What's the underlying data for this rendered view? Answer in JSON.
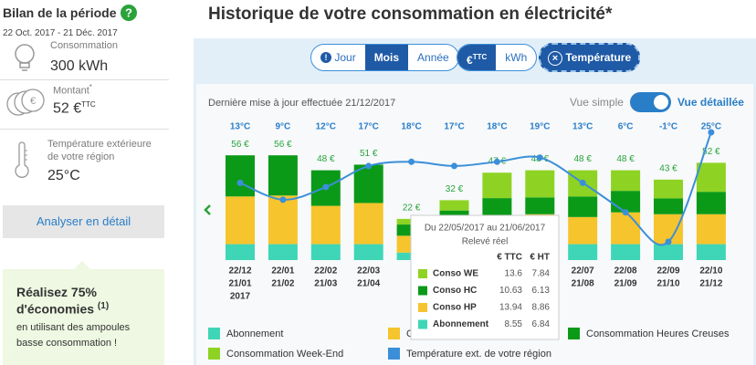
{
  "sidebar": {
    "title": "Bilan de la période",
    "period": "22 Oct. 2017 - 21 Déc. 2017",
    "consumption_label": "Consommation",
    "consumption_value": "300 kWh",
    "amount_label": "Montant",
    "amount_mark": "*",
    "amount_value": "52 €",
    "amount_unit": "TTC",
    "temperature_label": "Température extérieure de votre région",
    "temperature_value": "25°C",
    "button": "Analyser en détail",
    "promo": {
      "line1": "Réalisez 75%",
      "line2": "d'économies",
      "note": "(1)",
      "text": "en utilisant des ampoules basse consommation !"
    }
  },
  "header": {
    "title": "Historique de votre consommation en électricité*"
  },
  "controls": {
    "period_buttons": [
      "Jour",
      "Mois",
      "Année"
    ],
    "selected_period": 1,
    "unit_buttons": [
      {
        "label": "€",
        "sup": "TTC"
      },
      {
        "label": "kWh"
      }
    ],
    "selected_unit": 0,
    "temperature_toggle": "Température",
    "update_note": "Dernière mise à jour effectuée 21/12/2017",
    "view_simple": "Vue simple",
    "view_detailed": "Vue détaillée"
  },
  "chart_data": {
    "type": "bar",
    "stacked": true,
    "categories": [
      [
        "22/12",
        "21/01",
        "2017"
      ],
      [
        "22/01",
        "21/02"
      ],
      [
        "22/02",
        "21/03"
      ],
      [
        "22/03",
        "21/04"
      ],
      null,
      null,
      null,
      null,
      [
        "22/07",
        "21/08"
      ],
      [
        "22/08",
        "21/09"
      ],
      [
        "22/09",
        "21/10"
      ],
      [
        "22/10",
        "21/12"
      ]
    ],
    "series": [
      {
        "name": "Abonnement",
        "color": "#3ed6b6",
        "values": [
          8.5,
          8.5,
          8.5,
          8.5,
          4,
          8.5,
          8.55,
          8.5,
          8.5,
          8.5,
          8.5,
          8.5
        ]
      },
      {
        "name": "Consommation Heures Pleines",
        "color": "#f6c42c",
        "values": [
          25.5,
          26,
          20.5,
          22,
          9,
          11,
          13.94,
          16,
          14.5,
          17,
          16,
          16
        ]
      },
      {
        "name": "Consommation Heures Creuses",
        "color": "#0b9a18",
        "values": [
          22,
          21.5,
          19,
          20.5,
          6,
          7,
          10.63,
          9,
          11,
          11.5,
          8.5,
          12
        ]
      },
      {
        "name": "Consommation Week-End",
        "color": "#8ed323",
        "values": [
          0,
          0,
          0,
          0,
          3,
          5.5,
          13.6,
          14.5,
          14,
          11,
          10,
          15.5
        ]
      },
      {
        "name": "Température ext. de votre région",
        "color": "#3b8fd9",
        "type": "line",
        "axis": "y2",
        "values": [
          13,
          9,
          12,
          17,
          18,
          17,
          18,
          19,
          13,
          6,
          -1,
          25
        ],
        "value_labels": [
          "13°C",
          "9°C",
          "12°C",
          "17°C",
          "18°C",
          "17°C",
          "18°C",
          "19°C",
          "13°C",
          "6°C",
          "-1°C",
          "25°C"
        ]
      }
    ],
    "totals": [
      56,
      56,
      48,
      51,
      22,
      32,
      47,
      48,
      48,
      48,
      43,
      52
    ],
    "totals_labels": [
      "56 €",
      "56 €",
      "48 €",
      "51 €",
      "22 €",
      "32 €",
      "47 €",
      "48 €",
      "48 €",
      "48 €",
      "43 €",
      "52 €"
    ],
    "tooltip": {
      "title": "Du 22/05/2017 au 21/06/2017",
      "subtitle": "Relevé réel",
      "columns": [
        "€ TTC",
        "€ HT"
      ],
      "rows": [
        {
          "label": "Conso WE",
          "ttc": 13.6,
          "ht": 7.84,
          "color": "#8ed323"
        },
        {
          "label": "Conso HC",
          "ttc": 10.63,
          "ht": 6.13,
          "color": "#0b9a18"
        },
        {
          "label": "Conso HP",
          "ttc": 13.94,
          "ht": 8.86,
          "color": "#f6c42c"
        },
        {
          "label": "Abonnement",
          "ttc": 8.55,
          "ht": 6.84,
          "color": "#3ed6b6"
        }
      ]
    }
  }
}
